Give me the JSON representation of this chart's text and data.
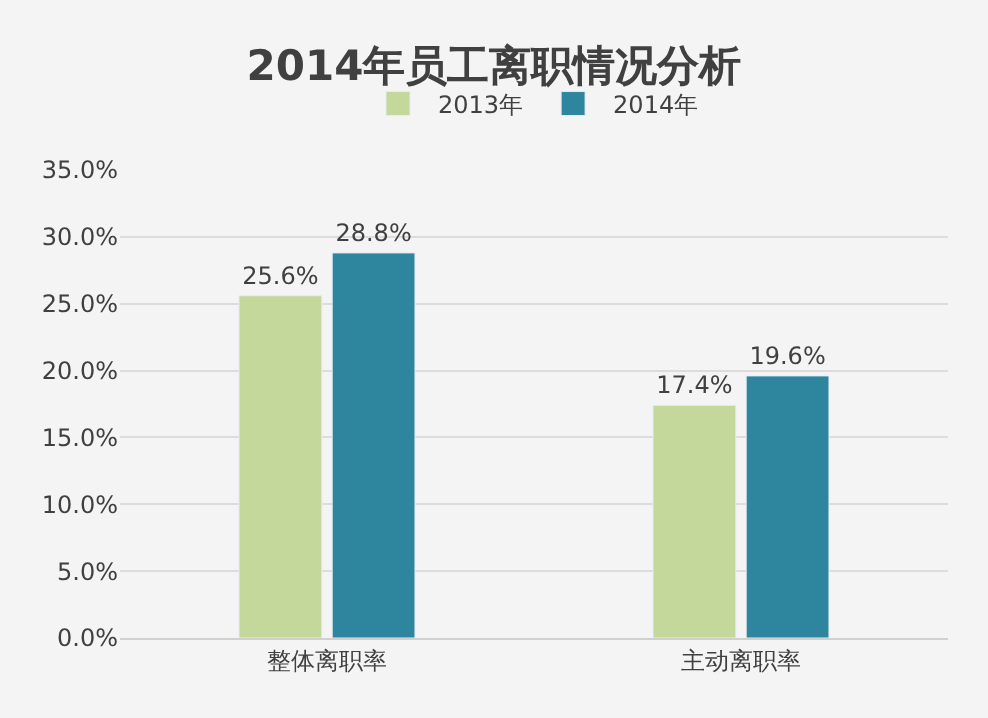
{
  "chart_data": {
    "type": "bar",
    "title": "2014年员工离职情况分析",
    "categories": [
      "整体离职率",
      "主动离职率"
    ],
    "series": [
      {
        "name": "2013年",
        "color": "#c5d89b",
        "values": [
          25.6,
          17.4
        ],
        "value_labels": [
          "25.6%",
          "17.4%"
        ]
      },
      {
        "name": "2014年",
        "color": "#2e869e",
        "values": [
          28.8,
          19.6
        ],
        "value_labels": [
          "28.8%",
          "19.6%"
        ]
      }
    ],
    "ylim": [
      0,
      35
    ],
    "yticks": [
      {
        "value": 0,
        "label": "0.0%"
      },
      {
        "value": 5,
        "label": "5.0%"
      },
      {
        "value": 10,
        "label": "10.0%"
      },
      {
        "value": 15,
        "label": "15.0%"
      },
      {
        "value": 20,
        "label": "20.0%"
      },
      {
        "value": 25,
        "label": "25.0%"
      },
      {
        "value": 30,
        "label": "30.0%"
      },
      {
        "value": 35,
        "label": "35.0%"
      }
    ],
    "grid": "y",
    "legend": "top"
  }
}
